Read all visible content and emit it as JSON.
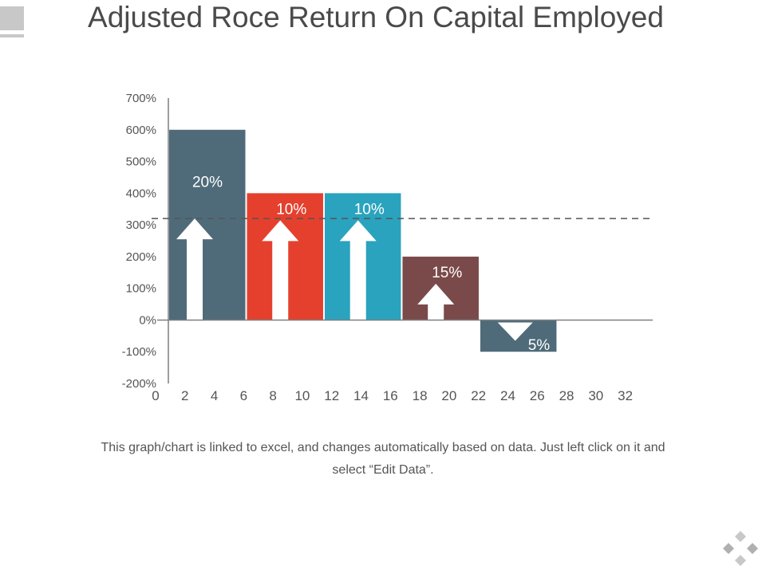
{
  "title": "Adjusted Roce Return On Capital Employed",
  "footnote": "This graph/chart is linked to excel, and changes automatically based on data. Just left click on it and select “Edit Data”.",
  "colors": {
    "slate": "#4f6b7a",
    "red": "#e5402e",
    "teal": "#2aa3be",
    "brown": "#7a4a4a",
    "axis": "#7f7f7f",
    "text": "#555555"
  },
  "chart_data": {
    "type": "bar",
    "title": "",
    "xlabel": "",
    "ylabel": "",
    "ylim": [
      -200,
      700
    ],
    "xlim": [
      0,
      33
    ],
    "y_ticks": [
      "700%",
      "600%",
      "500%",
      "400%",
      "300%",
      "200%",
      "100%",
      "0%",
      "-100%",
      "-200%"
    ],
    "y_tick_values": [
      700,
      600,
      500,
      400,
      300,
      200,
      100,
      0,
      -100,
      -200
    ],
    "x_ticks": [
      "0",
      "2",
      "4",
      "6",
      "8",
      "10",
      "12",
      "14",
      "16",
      "18",
      "20",
      "22",
      "24",
      "26",
      "28",
      "30",
      "32"
    ],
    "x_tick_values": [
      0,
      2,
      4,
      6,
      8,
      10,
      12,
      14,
      16,
      18,
      20,
      22,
      24,
      26,
      28,
      30,
      32
    ],
    "reference_line": 320,
    "bars": [
      {
        "x0": 0,
        "x1": 5.3,
        "value": 600,
        "label": "20%",
        "color": "#4f6b7a",
        "arrow": "up"
      },
      {
        "x0": 5.3,
        "x1": 10.6,
        "value": 400,
        "label": "10%",
        "color": "#e5402e",
        "arrow": "up"
      },
      {
        "x0": 10.6,
        "x1": 15.9,
        "value": 400,
        "label": "10%",
        "color": "#2aa3be",
        "arrow": "up"
      },
      {
        "x0": 15.9,
        "x1": 21.2,
        "value": 200,
        "label": "15%",
        "color": "#7a4a4a",
        "arrow": "up"
      },
      {
        "x0": 21.2,
        "x1": 26.5,
        "value": -100,
        "label": "5%",
        "color": "#4f6b7a",
        "arrow": "down"
      }
    ],
    "grid": false
  }
}
